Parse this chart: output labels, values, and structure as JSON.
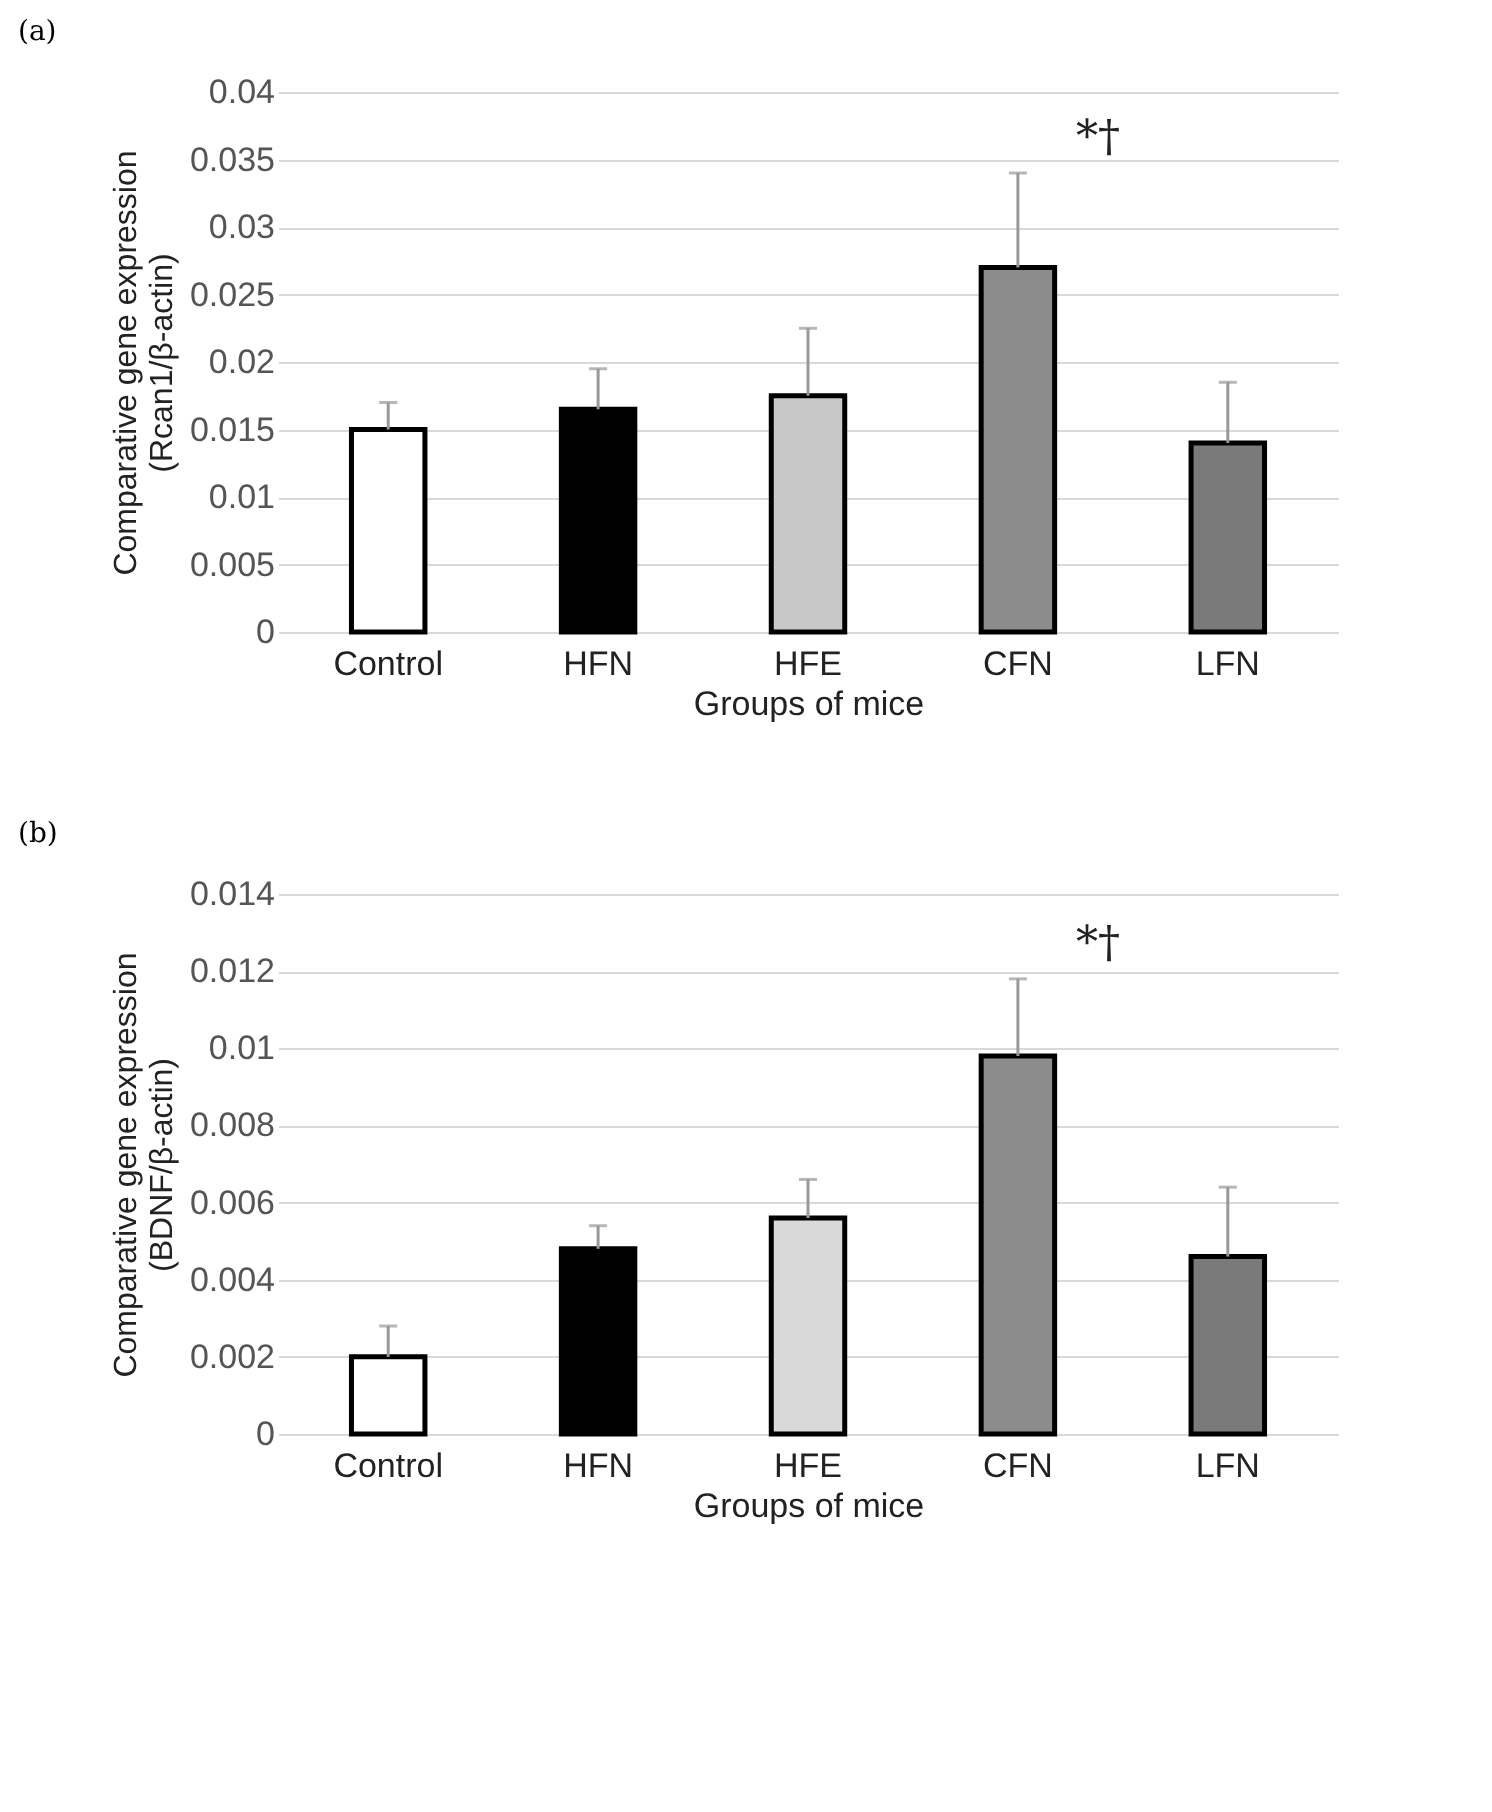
{
  "chart_data": [
    {
      "type": "bar",
      "title": "(a)",
      "xlabel": "Groups of mice",
      "ylabel": "Comparative gene expression\n(Rcan1/β-actin)",
      "categories": [
        "Control",
        "HFN",
        "HFE",
        "CFN",
        "LFN"
      ],
      "values": [
        0.015,
        0.0165,
        0.0175,
        0.027,
        0.014
      ],
      "colors": [
        "#ffffff",
        "#000000",
        "#c8c8c8",
        "#8c8c8c",
        "#7a7a7a"
      ],
      "errors": [
        [
          0.015,
          0.017
        ],
        [
          0.0165,
          0.0195
        ],
        [
          0.0175,
          0.0225
        ],
        [
          0.027,
          0.034
        ],
        [
          0.014,
          0.0185
        ]
      ],
      "ylim": [
        0,
        0.04
      ],
      "yticks": [
        0,
        0.005,
        0.01,
        0.015,
        0.02,
        0.025,
        0.03,
        0.035,
        0.04
      ],
      "grid": "y",
      "annotations": [
        {
          "text": "*†",
          "x": "CFN",
          "y": 0.034
        }
      ]
    },
    {
      "type": "bar",
      "title": "(b)",
      "xlabel": "Groups of mice",
      "ylabel": "Comparative gene expression\n(BDNF/β-actin)",
      "categories": [
        "Control",
        "HFN",
        "HFE",
        "CFN",
        "LFN"
      ],
      "values": [
        0.002,
        0.0048,
        0.0056,
        0.0098,
        0.0046
      ],
      "colors": [
        "#ffffff",
        "#000000",
        "#d9d9d9",
        "#8c8c8c",
        "#7a7a7a"
      ],
      "errors": [
        [
          0.002,
          0.0028
        ],
        [
          0.0048,
          0.0054
        ],
        [
          0.0056,
          0.0066
        ],
        [
          0.0098,
          0.0118
        ],
        [
          0.0046,
          0.0064
        ]
      ],
      "ylim": [
        0,
        0.014
      ],
      "yticks": [
        0,
        0.002,
        0.004,
        0.006,
        0.008,
        0.01,
        0.012,
        0.014
      ],
      "grid": "y",
      "annotations": [
        {
          "text": "*†",
          "x": "CFN",
          "y": 0.0118
        }
      ]
    }
  ]
}
